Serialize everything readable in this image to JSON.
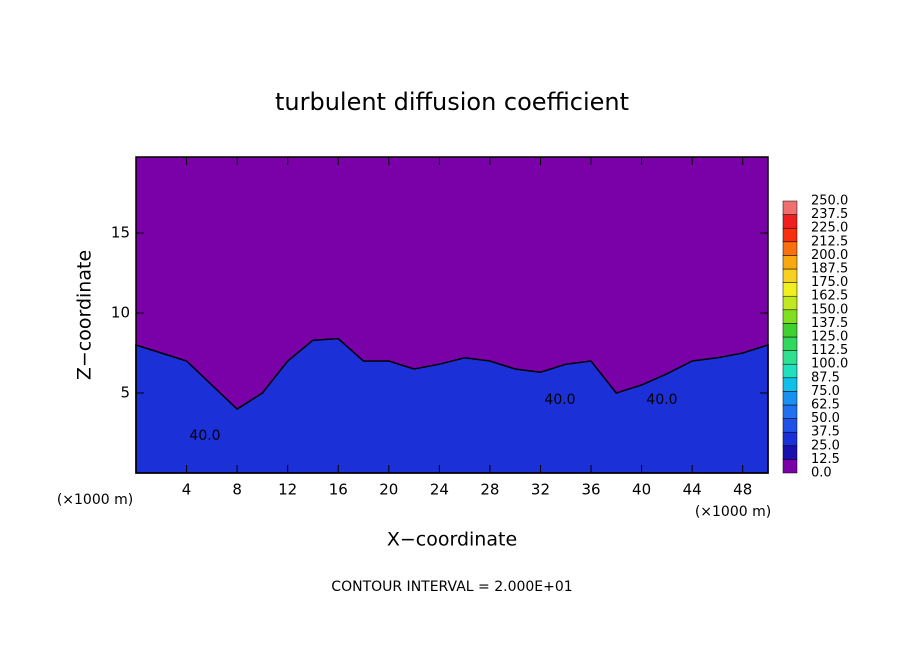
{
  "chart_data": {
    "type": "contour",
    "title": "turbulent diffusion coefficient",
    "xlabel": "X−coordinate",
    "ylabel": "Z−coordinate",
    "x_unit": "(×1000 m)",
    "y_unit": "(×1000 m)",
    "footer": "CONTOUR INTERVAL = 2.000E+01",
    "xlim": [
      0,
      50
    ],
    "xticks": [
      4,
      8,
      12,
      16,
      20,
      24,
      28,
      32,
      36,
      40,
      44,
      48
    ],
    "ylim": [
      0,
      19.75
    ],
    "yticks": [
      5,
      10,
      15
    ],
    "background_color": "#7a00a8",
    "series": [
      {
        "color": "#1c30d8",
        "x": [
          0,
          2,
          4,
          6,
          8,
          10,
          12,
          14,
          16,
          18,
          20,
          22,
          24,
          26,
          28,
          30,
          32,
          34,
          36,
          38,
          40,
          42,
          44,
          46,
          48,
          50
        ],
        "values": [
          8,
          7.5,
          7,
          5.5,
          4,
          5,
          7,
          8.3,
          8.4,
          7,
          7,
          6.5,
          6.8,
          7.2,
          7,
          6.5,
          6.3,
          6.8,
          7,
          5,
          5.5,
          6.2,
          7,
          7.2,
          7.5,
          8
        ]
      }
    ],
    "contour_labels": [
      {
        "value": 40,
        "label": "40.0"
      },
      {
        "value": 40,
        "label": "40.0"
      },
      {
        "value": 40,
        "label": "40.0"
      }
    ],
    "colorbar": {
      "levels": [
        {
          "value": 0,
          "label": "0.0"
        },
        {
          "value": 12.5,
          "label": "12.5"
        },
        {
          "value": 25,
          "label": "25.0"
        },
        {
          "value": 37.5,
          "label": "37.5"
        },
        {
          "value": 50,
          "label": "50.0"
        },
        {
          "value": 62.5,
          "label": "62.5"
        },
        {
          "value": 75,
          "label": "75.0"
        },
        {
          "value": 87.5,
          "label": "87.5"
        },
        {
          "value": 100,
          "label": "100.0"
        },
        {
          "value": 112.5,
          "label": "112.5"
        },
        {
          "value": 125,
          "label": "125.0"
        },
        {
          "value": 137.5,
          "label": "137.5"
        },
        {
          "value": 150,
          "label": "150.0"
        },
        {
          "value": 162.5,
          "label": "162.5"
        },
        {
          "value": 175,
          "label": "175.0"
        },
        {
          "value": 187.5,
          "label": "187.5"
        },
        {
          "value": 200,
          "label": "200.0"
        },
        {
          "value": 212.5,
          "label": "212.5"
        },
        {
          "value": 225,
          "label": "225.0"
        },
        {
          "value": 237.5,
          "label": "237.5"
        },
        {
          "value": 250,
          "label": "250.0"
        }
      ],
      "colors": [
        "#7a00a8",
        "#1a10b0",
        "#1c30d8",
        "#2050e8",
        "#2070f0",
        "#1a90f0",
        "#10c0e8",
        "#20e0c0",
        "#30e090",
        "#30d860",
        "#40d030",
        "#80e020",
        "#c0e820",
        "#f0f020",
        "#f8d020",
        "#f8a810",
        "#f87010",
        "#f83010",
        "#f02020",
        "#f07070"
      ]
    }
  }
}
